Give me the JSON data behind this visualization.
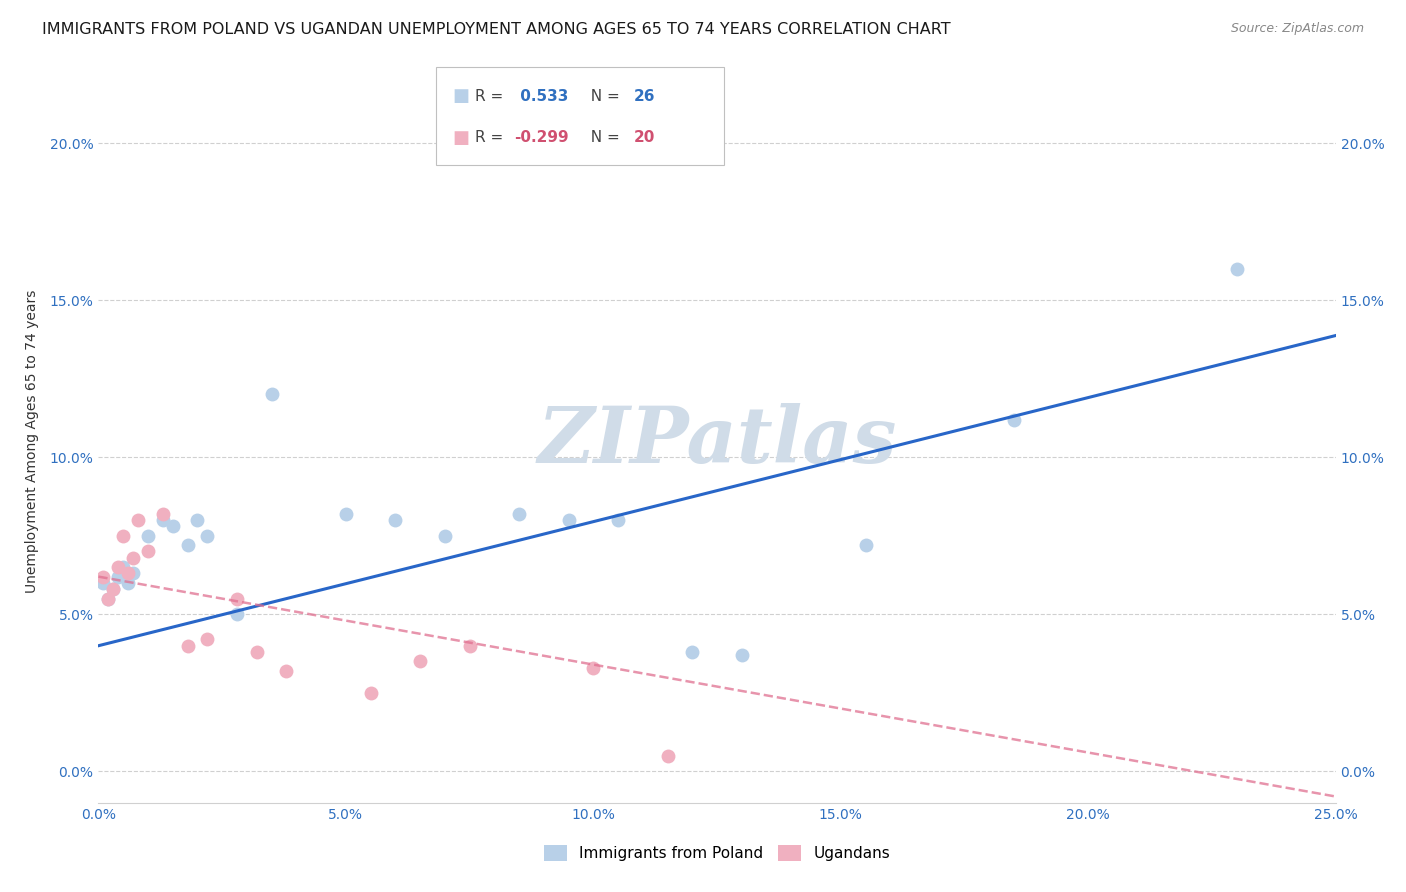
{
  "title": "IMMIGRANTS FROM POLAND VS UGANDAN UNEMPLOYMENT AMONG AGES 65 TO 74 YEARS CORRELATION CHART",
  "source": "Source: ZipAtlas.com",
  "ylabel": "Unemployment Among Ages 65 to 74 years",
  "xlim": [
    0.0,
    0.25
  ],
  "ylim": [
    -0.01,
    0.22
  ],
  "xticks": [
    0.0,
    0.05,
    0.1,
    0.15,
    0.2,
    0.25
  ],
  "yticks": [
    0.0,
    0.05,
    0.1,
    0.15,
    0.2
  ],
  "xtick_labels": [
    "0.0%",
    "5.0%",
    "10.0%",
    "15.0%",
    "20.0%",
    "25.0%"
  ],
  "ytick_labels": [
    "0.0%",
    "5.0%",
    "10.0%",
    "15.0%",
    "20.0%"
  ],
  "poland_x": [
    0.001,
    0.002,
    0.003,
    0.004,
    0.005,
    0.006,
    0.007,
    0.01,
    0.013,
    0.015,
    0.018,
    0.02,
    0.022,
    0.028,
    0.035,
    0.05,
    0.06,
    0.07,
    0.085,
    0.095,
    0.105,
    0.12,
    0.13,
    0.155,
    0.185,
    0.23
  ],
  "poland_y": [
    0.06,
    0.055,
    0.058,
    0.062,
    0.065,
    0.06,
    0.063,
    0.075,
    0.08,
    0.078,
    0.072,
    0.08,
    0.075,
    0.05,
    0.12,
    0.082,
    0.08,
    0.075,
    0.082,
    0.08,
    0.08,
    0.038,
    0.037,
    0.072,
    0.112,
    0.16
  ],
  "uganda_x": [
    0.001,
    0.002,
    0.003,
    0.004,
    0.005,
    0.006,
    0.007,
    0.008,
    0.01,
    0.013,
    0.018,
    0.022,
    0.028,
    0.032,
    0.038,
    0.055,
    0.065,
    0.075,
    0.1,
    0.115
  ],
  "uganda_y": [
    0.062,
    0.055,
    0.058,
    0.065,
    0.075,
    0.063,
    0.068,
    0.08,
    0.07,
    0.082,
    0.04,
    0.042,
    0.055,
    0.038,
    0.032,
    0.025,
    0.035,
    0.04,
    0.033,
    0.005
  ],
  "poland_R": 0.533,
  "poland_N": 26,
  "uganda_R": -0.299,
  "uganda_N": 20,
  "blue_color": "#b8d0e8",
  "pink_color": "#f0b0c0",
  "blue_line_color": "#2866c8",
  "pink_line_color": "#e07090",
  "blue_text_color": "#3070c0",
  "pink_text_color": "#d05070",
  "grid_color": "#d0d0d0",
  "watermark_color": "#d0dce8",
  "background_color": "#ffffff",
  "title_fontsize": 11.5,
  "label_fontsize": 10,
  "tick_fontsize": 10,
  "marker_size": 100,
  "blue_line_intercept": 0.04,
  "blue_line_slope": 0.395,
  "pink_line_intercept": 0.062,
  "pink_line_slope": -0.28
}
